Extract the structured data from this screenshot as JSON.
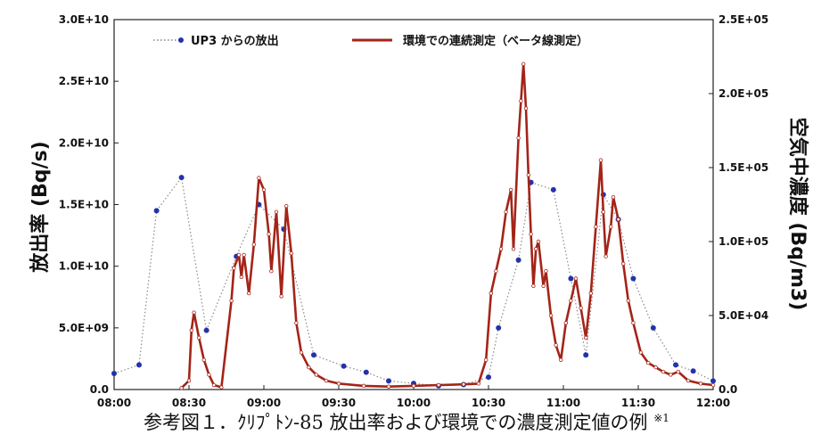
{
  "chart_data": {
    "type": "line",
    "x_tick_labels": [
      "08:00",
      "08:30",
      "09:00",
      "09:30",
      "10:00",
      "10:30",
      "11:00",
      "11:30",
      "12:00"
    ],
    "y_left_tick_labels": [
      "0.0",
      "5.0E+09",
      "1.0E+10",
      "1.5E+10",
      "2.0E+10",
      "2.5E+10",
      "3.0E+10"
    ],
    "y_right_tick_labels": [
      "0.0",
      "5.0E+04",
      "1.0E+05",
      "1.5E+05",
      "2.0E+05",
      "2.5E+05"
    ],
    "y_left_label": "放出率 (Bq/s)",
    "y_right_label": "空気中濃度 (Bq/m3)",
    "y_left_lim": [
      0,
      30000000000
    ],
    "y_right_lim": [
      0,
      250000
    ],
    "x_range": [
      "08:00",
      "12:00"
    ],
    "legend_position": "top",
    "series": [
      {
        "name": "UP3 からの放出",
        "axis": "left",
        "color": "#2233aa",
        "style": "dotted-with-markers",
        "points": [
          [
            "08:00",
            1300000000.0
          ],
          [
            "08:10",
            2000000000.0
          ],
          [
            "08:17",
            14500000000.0
          ],
          [
            "08:27",
            17200000000.0
          ],
          [
            "08:37",
            4800000000.0
          ],
          [
            "08:49",
            10800000000.0
          ],
          [
            "08:58",
            15000000000.0
          ],
          [
            "09:08",
            13000000000.0
          ],
          [
            "09:20",
            2800000000.0
          ],
          [
            "09:32",
            1900000000.0
          ],
          [
            "09:41",
            1400000000.0
          ],
          [
            "09:50",
            700000000.0
          ],
          [
            "10:00",
            500000000.0
          ],
          [
            "10:10",
            300000000.0
          ],
          [
            "10:20",
            400000000.0
          ],
          [
            "10:30",
            1000000000.0
          ],
          [
            "10:34",
            5000000000.0
          ],
          [
            "10:42",
            10500000000.0
          ],
          [
            "10:47",
            16800000000.0
          ],
          [
            "10:56",
            16200000000.0
          ],
          [
            "11:03",
            9000000000.0
          ],
          [
            "11:09",
            2800000000.0
          ],
          [
            "11:16",
            15800000000.0
          ],
          [
            "11:22",
            13800000000.0
          ],
          [
            "11:28",
            9000000000.0
          ],
          [
            "11:36",
            5000000000.0
          ],
          [
            "11:45",
            2000000000.0
          ],
          [
            "11:52",
            1500000000.0
          ],
          [
            "12:00",
            700000000.0
          ]
        ]
      },
      {
        "name": "環境での連続測定（ベータ線測定）",
        "axis": "right",
        "color": "#a42418",
        "style": "solid-with-markers",
        "points": [
          [
            "08:27",
            1000
          ],
          [
            "08:30",
            6000
          ],
          [
            "08:31",
            40000
          ],
          [
            "08:32",
            52000
          ],
          [
            "08:34",
            35000
          ],
          [
            "08:36",
            20000
          ],
          [
            "08:38",
            10000
          ],
          [
            "08:40",
            3000
          ],
          [
            "08:43",
            1500
          ],
          [
            "08:47",
            60000
          ],
          [
            "08:48",
            82000
          ],
          [
            "08:50",
            91000
          ],
          [
            "08:51",
            76000
          ],
          [
            "08:52",
            91000
          ],
          [
            "08:54",
            65000
          ],
          [
            "08:56",
            98000
          ],
          [
            "08:58",
            143000
          ],
          [
            "09:00",
            135000
          ],
          [
            "09:02",
            105000
          ],
          [
            "09:03",
            80000
          ],
          [
            "09:05",
            120000
          ],
          [
            "09:07",
            63000
          ],
          [
            "09:09",
            124000
          ],
          [
            "09:11",
            92000
          ],
          [
            "09:13",
            45000
          ],
          [
            "09:15",
            25000
          ],
          [
            "09:18",
            15000
          ],
          [
            "09:21",
            10000
          ],
          [
            "09:25",
            6000
          ],
          [
            "09:30",
            4000
          ],
          [
            "09:40",
            2500
          ],
          [
            "09:50",
            2000
          ],
          [
            "10:00",
            2500
          ],
          [
            "10:10",
            3000
          ],
          [
            "10:20",
            3500
          ],
          [
            "10:26",
            4000
          ],
          [
            "10:29",
            20000
          ],
          [
            "10:31",
            65000
          ],
          [
            "10:33",
            80000
          ],
          [
            "10:35",
            95000
          ],
          [
            "10:37",
            120000
          ],
          [
            "10:39",
            135000
          ],
          [
            "10:40",
            95000
          ],
          [
            "10:42",
            170000
          ],
          [
            "10:43",
            195000
          ],
          [
            "10:44",
            220000
          ],
          [
            "10:45",
            190000
          ],
          [
            "10:46",
            145000
          ],
          [
            "10:47",
            105000
          ],
          [
            "10:48",
            70000
          ],
          [
            "10:49",
            95000
          ],
          [
            "10:50",
            100000
          ],
          [
            "10:52",
            70000
          ],
          [
            "10:53",
            80000
          ],
          [
            "10:55",
            50000
          ],
          [
            "10:57",
            30000
          ],
          [
            "10:59",
            20000
          ],
          [
            "11:01",
            45000
          ],
          [
            "11:03",
            60000
          ],
          [
            "11:05",
            75000
          ],
          [
            "11:07",
            55000
          ],
          [
            "11:09",
            35000
          ],
          [
            "11:11",
            65000
          ],
          [
            "11:13",
            110000
          ],
          [
            "11:15",
            155000
          ],
          [
            "11:16",
            120000
          ],
          [
            "11:17",
            90000
          ],
          [
            "11:19",
            110000
          ],
          [
            "11:20",
            130000
          ],
          [
            "11:22",
            115000
          ],
          [
            "11:24",
            85000
          ],
          [
            "11:26",
            60000
          ],
          [
            "11:28",
            45000
          ],
          [
            "11:31",
            25000
          ],
          [
            "11:34",
            18000
          ],
          [
            "11:37",
            15000
          ],
          [
            "11:40",
            12000
          ],
          [
            "11:43",
            10000
          ],
          [
            "11:46",
            12000
          ],
          [
            "11:50",
            6000
          ],
          [
            "11:55",
            4000
          ],
          [
            "12:00",
            3000
          ]
        ]
      }
    ]
  },
  "caption": {
    "text": "参考図１．ｸﾘﾌﾟﾄﾝ-85 放出率および環境での濃度測定値の例",
    "note": "※1"
  }
}
